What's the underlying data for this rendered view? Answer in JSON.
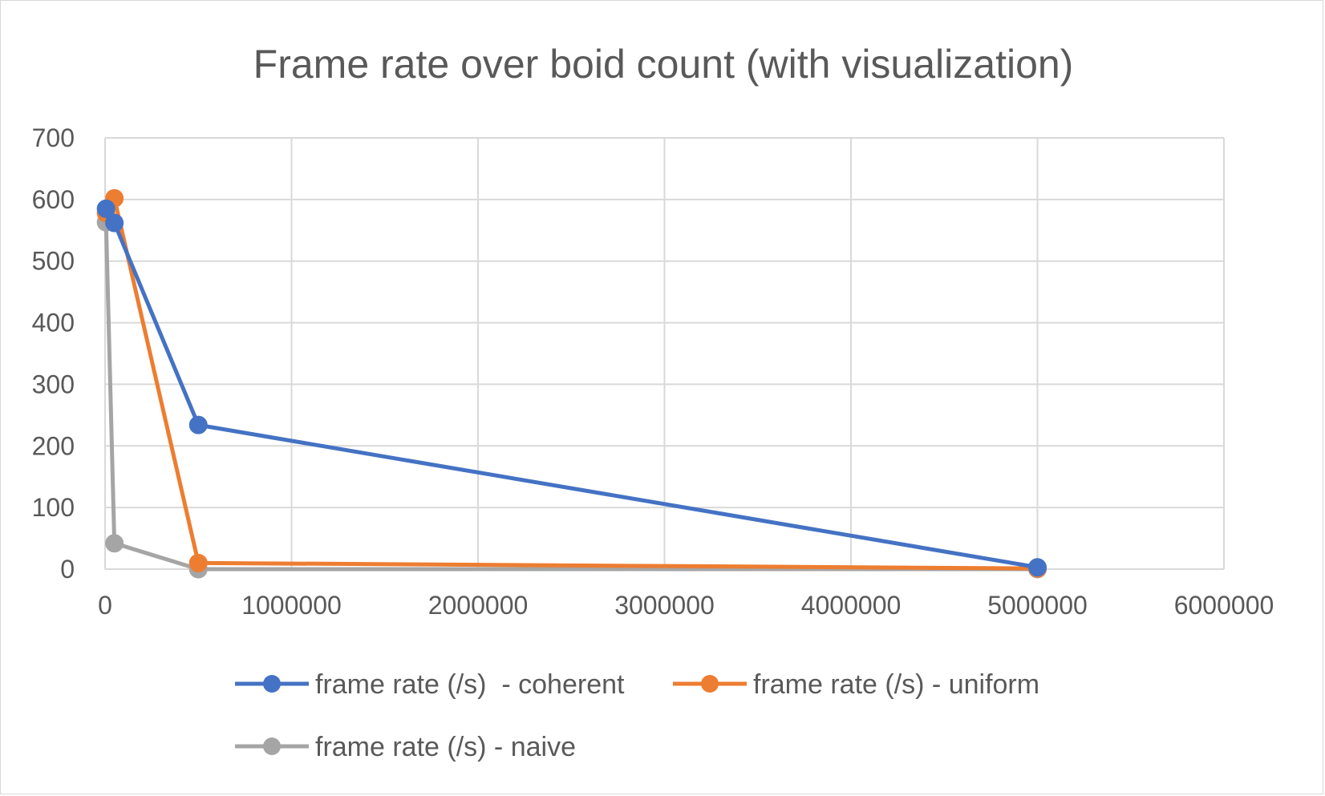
{
  "chart_data": {
    "type": "line",
    "title": "Frame rate over boid count (with visualization)",
    "xlabel": "",
    "ylabel": "",
    "xlim": [
      0,
      6000000
    ],
    "ylim": [
      0,
      700
    ],
    "x_ticks": [
      "0",
      "1000000",
      "2000000",
      "3000000",
      "4000000",
      "5000000",
      "6000000"
    ],
    "y_ticks": [
      "0",
      "100",
      "200",
      "300",
      "400",
      "500",
      "600",
      "700"
    ],
    "grid": true,
    "legend_position": "bottom",
    "series": [
      {
        "name": "frame rate (/s)  - coherent",
        "color": "#4472C4",
        "points": [
          {
            "x": 5000,
            "y": 585
          },
          {
            "x": 50000,
            "y": 562
          },
          {
            "x": 500000,
            "y": 234
          },
          {
            "x": 5000000,
            "y": 3
          }
        ]
      },
      {
        "name": "frame rate (/s) - uniform",
        "color": "#ED7D31",
        "points": [
          {
            "x": 5000,
            "y": 578
          },
          {
            "x": 50000,
            "y": 602
          },
          {
            "x": 500000,
            "y": 10
          },
          {
            "x": 5000000,
            "y": 1
          }
        ]
      },
      {
        "name": "frame rate (/s) - naive",
        "color": "#A5A5A5",
        "points": [
          {
            "x": 5000,
            "y": 563
          },
          {
            "x": 50000,
            "y": 42
          },
          {
            "x": 500000,
            "y": 0
          },
          {
            "x": 5000000,
            "y": 0
          }
        ]
      }
    ]
  }
}
